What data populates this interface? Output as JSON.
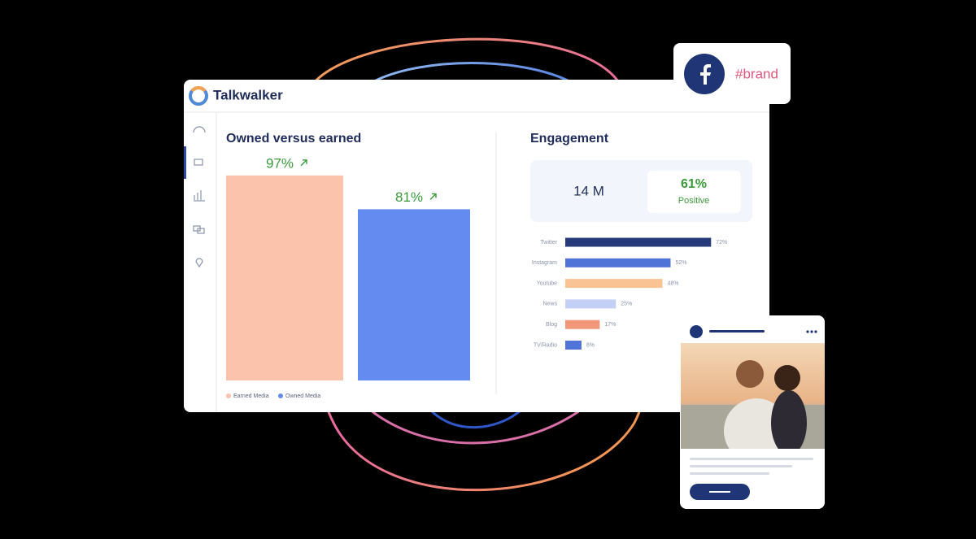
{
  "app": {
    "brand": "Talkwalker"
  },
  "social_badge": {
    "hashtag": "#brand"
  },
  "owned_vs_earned": {
    "type": "bar",
    "title": "Owned versus earned",
    "categories": [
      "Earned Media",
      "Owned Media"
    ],
    "values": [
      97,
      81
    ],
    "value_labels": [
      "97%",
      "81%"
    ],
    "colors": [
      "#fcc3ac",
      "#648bf0"
    ],
    "label_color": "#3a9a3a"
  },
  "engagement": {
    "title": "Engagement",
    "total": "14 M",
    "positive_share": "61%",
    "positive_label": "Positive",
    "chart": {
      "type": "bar",
      "orientation": "horizontal",
      "categories": [
        "Twitter",
        "Instagram",
        "Youtube",
        "News",
        "Blog",
        "TV/Radio"
      ],
      "values": [
        72,
        52,
        48,
        25,
        17,
        8
      ],
      "value_labels": [
        "72%",
        "52%",
        "48%",
        "25%",
        "17%",
        "8%"
      ],
      "colors": [
        "#263a7a",
        "#4f73d6",
        "#f9c394",
        "#c4d0f5",
        "#f0977a",
        "#4f73d6"
      ]
    }
  }
}
